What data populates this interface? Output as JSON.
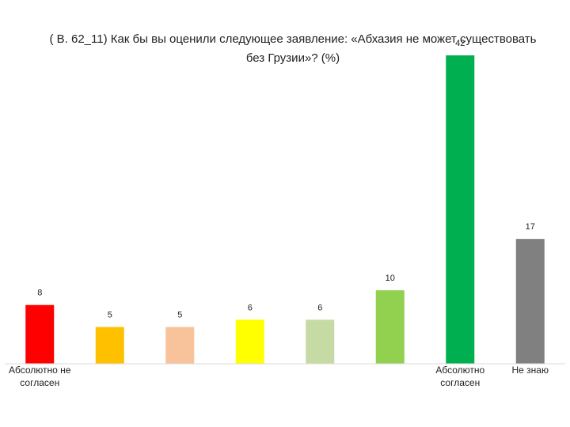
{
  "chart_data": {
    "type": "bar",
    "title": "( В. 62_11)  Как бы вы оценили следующее заявление: «Абхазия не может существовать без Грузии»? (%)",
    "categories": [
      "Абсолютно не согласен",
      "",
      "",
      "",
      "",
      "",
      "Абсолютно согласен",
      "Не знаю"
    ],
    "values": [
      8,
      5,
      5,
      6,
      6,
      10,
      42,
      17
    ],
    "colors": [
      "#ff0000",
      "#ffc000",
      "#f8c39b",
      "#ffff00",
      "#c5dba3",
      "#92d050",
      "#00b050",
      "#808080"
    ],
    "ylim": [
      0,
      42
    ],
    "grid": false,
    "legend": "none"
  }
}
